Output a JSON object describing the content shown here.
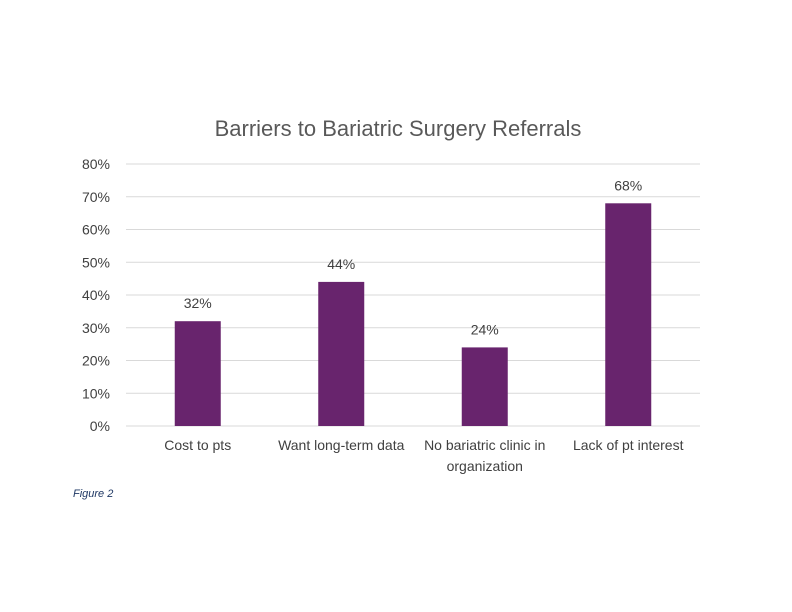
{
  "chart_data": {
    "type": "bar",
    "title": "Barriers to Bariatric Surgery Referrals",
    "categories": [
      [
        "Cost to pts"
      ],
      [
        "Want long-term data"
      ],
      [
        "No bariatric clinic in",
        "organization"
      ],
      [
        "Lack of pt interest"
      ]
    ],
    "values": [
      32,
      44,
      24,
      68
    ],
    "data_labels": [
      "32%",
      "44%",
      "24%",
      "68%"
    ],
    "ylim": [
      0,
      80
    ],
    "yticks": [
      "0%",
      "10%",
      "20%",
      "30%",
      "40%",
      "50%",
      "60%",
      "70%",
      "80%"
    ],
    "bar_color": "#68246d",
    "grid": true,
    "legend": "none"
  },
  "caption": "Figure 2"
}
